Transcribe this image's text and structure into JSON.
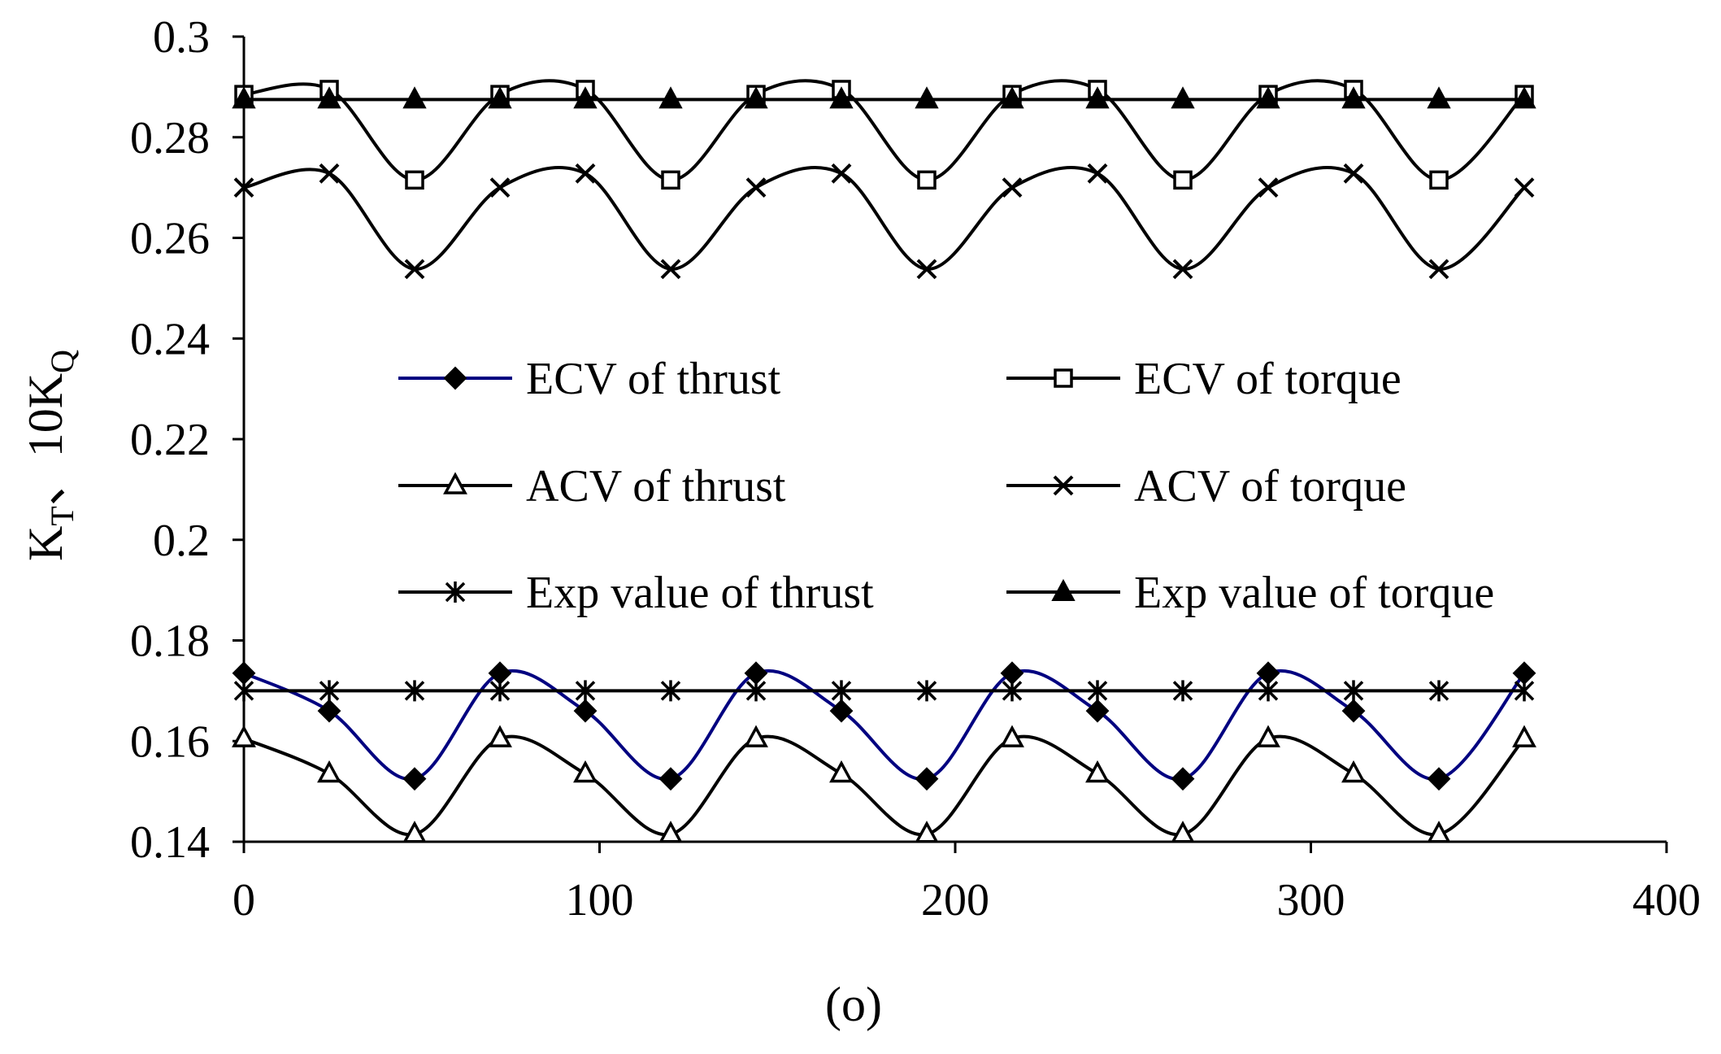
{
  "chart_data": {
    "type": "line",
    "title": "",
    "xlabel": "(o)",
    "ylabel": {
      "main": "K",
      "sub1": "T",
      "sep": "、10K",
      "sub2": "Q"
    },
    "xlim": [
      0,
      400
    ],
    "ylim": [
      0.14,
      0.3
    ],
    "xticks": [
      0,
      100,
      200,
      300,
      400
    ],
    "xtick_labels": [
      "0",
      "100",
      "200",
      "300",
      "400"
    ],
    "yticks": [
      0.14,
      0.16,
      0.18,
      0.2,
      0.22,
      0.24,
      0.26,
      0.28,
      0.3
    ],
    "ytick_labels": [
      "0.14",
      "0.16",
      "0.18",
      "0.2",
      "0.22",
      "0.24",
      "0.26",
      "0.28",
      "0.3"
    ],
    "grid": false,
    "legend_position": "center",
    "series": [
      {
        "name": "ECV of thrust",
        "color": "#000080",
        "marker": "diamond",
        "x": [
          0,
          24,
          48,
          72,
          96,
          120,
          144,
          168,
          192,
          216,
          240,
          264,
          288,
          312,
          336,
          360
        ],
        "y": [
          0.1735,
          0.166,
          0.1525,
          0.1735,
          0.166,
          0.1525,
          0.1735,
          0.166,
          0.1525,
          0.1735,
          0.166,
          0.1525,
          0.1735,
          0.166,
          0.1525,
          0.1735
        ]
      },
      {
        "name": "ECV of torque",
        "color": "#000000",
        "marker": "square-open",
        "x": [
          0,
          24,
          48,
          72,
          96,
          120,
          144,
          168,
          192,
          216,
          240,
          264,
          288,
          312,
          336,
          360
        ],
        "y": [
          0.2885,
          0.2895,
          0.2715,
          0.2885,
          0.2895,
          0.2715,
          0.2885,
          0.2895,
          0.2715,
          0.2885,
          0.2895,
          0.2715,
          0.2885,
          0.2895,
          0.2715,
          0.2885
        ]
      },
      {
        "name": "ACV of thrust",
        "color": "#000000",
        "marker": "triangle-open",
        "x": [
          0,
          24,
          48,
          72,
          96,
          120,
          144,
          168,
          192,
          216,
          240,
          264,
          288,
          312,
          336,
          360
        ],
        "y": [
          0.1605,
          0.1535,
          0.1415,
          0.1605,
          0.1535,
          0.1415,
          0.1605,
          0.1535,
          0.1415,
          0.1605,
          0.1535,
          0.1415,
          0.1605,
          0.1535,
          0.1415,
          0.1605
        ]
      },
      {
        "name": "ACV of torque",
        "color": "#000000",
        "marker": "x",
        "x": [
          0,
          24,
          48,
          72,
          96,
          120,
          144,
          168,
          192,
          216,
          240,
          264,
          288,
          312,
          336,
          360
        ],
        "y": [
          0.27,
          0.2728,
          0.2538,
          0.27,
          0.2728,
          0.2538,
          0.27,
          0.2728,
          0.2538,
          0.27,
          0.2728,
          0.2538,
          0.27,
          0.2728,
          0.2538,
          0.27
        ]
      },
      {
        "name": "Exp value of thrust",
        "color": "#000000",
        "marker": "star",
        "x": [
          0,
          24,
          48,
          72,
          96,
          120,
          144,
          168,
          192,
          216,
          240,
          264,
          288,
          312,
          336,
          360
        ],
        "y": [
          0.17,
          0.17,
          0.17,
          0.17,
          0.17,
          0.17,
          0.17,
          0.17,
          0.17,
          0.17,
          0.17,
          0.17,
          0.17,
          0.17,
          0.17,
          0.17
        ]
      },
      {
        "name": "Exp value of torque",
        "color": "#000000",
        "marker": "triangle-filled",
        "x": [
          0,
          24,
          48,
          72,
          96,
          120,
          144,
          168,
          192,
          216,
          240,
          264,
          288,
          312,
          336,
          360
        ],
        "y": [
          0.2875,
          0.2875,
          0.2875,
          0.2875,
          0.2875,
          0.2875,
          0.2875,
          0.2875,
          0.2875,
          0.2875,
          0.2875,
          0.2875,
          0.2875,
          0.2875,
          0.2875,
          0.2875
        ]
      }
    ]
  }
}
